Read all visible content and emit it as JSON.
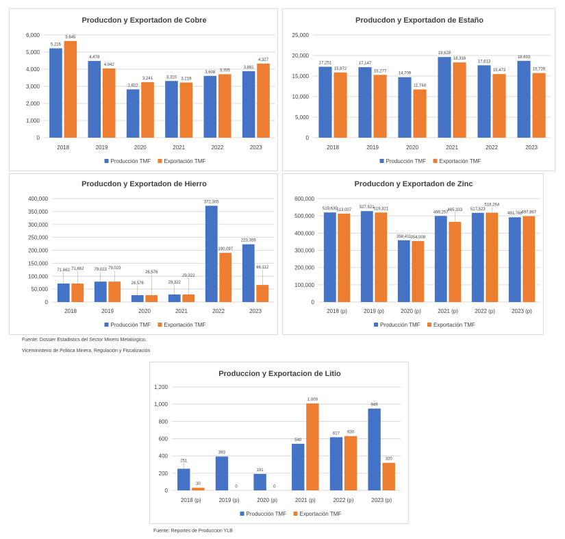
{
  "colors": {
    "production": "#4472C4",
    "export": "#ED7D31",
    "grid": "#d9d9d9",
    "leader": "#a6a6a6"
  },
  "charts": [
    {
      "chart_data": {
        "type": "bar",
        "title": "Producdon y Exportadon de Cobre",
        "categories": [
          "2018",
          "2019",
          "2020",
          "2021",
          "2022",
          "2023"
        ],
        "series": [
          {
            "name": "Producción TMF",
            "values": [
              5216,
              4478,
              2822,
              3310,
              3608,
              3881
            ],
            "labels": [
              "5,216",
              "4,478",
              "2,822",
              "3,310",
              "3,608",
              "3,881"
            ]
          },
          {
            "name": "Exportación TMF",
            "values": [
              5645,
              4042,
              3241,
              3219,
              3705,
              4327
            ],
            "labels": [
              "5,645",
              "4,042",
              "3,241",
              "3,219",
              "3,705",
              "4,327"
            ]
          }
        ],
        "ylim": [
          0,
          6000
        ],
        "yticks": [
          "0",
          "1,000",
          "2,000",
          "3,000",
          "4,000",
          "5,000",
          "6,000"
        ],
        "legend": "bottom",
        "grid": true
      }
    },
    {
      "chart_data": {
        "type": "bar",
        "title": "Producdon y Exportadon de Estaño",
        "categories": [
          "2018",
          "2019",
          "2020",
          "2021",
          "2022",
          "2023"
        ],
        "series": [
          {
            "name": "Producción TMF",
            "values": [
              17251,
              17147,
              14709,
              19628,
              17613,
              18693
            ],
            "labels": [
              "17,251",
              "17,147",
              "14,709",
              "19,628",
              "17,613",
              "18,693"
            ]
          },
          {
            "name": "Exportación TMF",
            "values": [
              15872,
              15277,
              11744,
              18316,
              15473,
              15726
            ],
            "labels": [
              "15,872",
              "15,277",
              "11,744",
              "18,316",
              "15,473",
              "15,726"
            ]
          }
        ],
        "ylim": [
          0,
          25000
        ],
        "yticks": [
          "0",
          "5,000",
          "10,000",
          "15,000",
          "20,000",
          "25,000"
        ],
        "legend": "bottom",
        "grid": true
      }
    },
    {
      "chart_data": {
        "type": "bar",
        "title": "Producdon y Exportadon de Hierro",
        "categories": [
          "2018",
          "2019",
          "2020",
          "2021",
          "2022",
          "2023"
        ],
        "series": [
          {
            "name": "Producción TMF",
            "values": [
              71662,
              79023,
              26576,
              29322,
              372305,
              223359
            ],
            "labels": [
              "71,662",
              "79,023",
              "26,576",
              "29,322",
              "372,305",
              "223,359"
            ]
          },
          {
            "name": "Exportación TMF",
            "values": [
              71662,
              79023,
              26576,
              29322,
              190097,
              66112
            ],
            "labels": [
              "71,662",
              "79,023",
              "26,576",
              "29,322",
              "190,097",
              "66,112"
            ]
          }
        ],
        "ylim": [
          0,
          400000
        ],
        "yticks": [
          "0",
          "50,000",
          "100,000",
          "150,000",
          "200,000",
          "250,000",
          "300,000",
          "350,000",
          "400,000"
        ],
        "legend": "bottom",
        "grid": true
      }
    },
    {
      "chart_data": {
        "type": "bar",
        "title": "Producdon y Exportadon de Zinc",
        "categories": [
          "2018 (p)",
          "2019 (p)",
          "2020 (p)",
          "2021 (p)",
          "2022 (p)",
          "2023 (p)"
        ],
        "series": [
          {
            "name": "Producción TMF",
            "values": [
              519630,
              527521,
              358411,
              499257,
              517523,
              491768
            ],
            "labels": [
              "519,630",
              "527,521",
              "358,411",
              "499,257",
              "517,523",
              "491,768"
            ]
          },
          {
            "name": "Exportación TMF",
            "values": [
              513007,
              519321,
              354008,
              465333,
              518264,
              497867
            ],
            "labels": [
              "513,007",
              "519,321",
              "354,008",
              "465,333",
              "518,264",
              "497,867"
            ]
          }
        ],
        "ylim": [
          0,
          600000
        ],
        "yticks": [
          "0",
          "100,000",
          "200,000",
          "300,000",
          "400,000",
          "500,000",
          "600,000"
        ],
        "legend": "bottom",
        "grid": true
      }
    },
    {
      "chart_data": {
        "type": "bar",
        "title": "Produccion y Exportacion de Litio",
        "categories": [
          "2018 (p)",
          "2019 (p)",
          "2020 (p)",
          "2021 (p)",
          "2022 (p)",
          "2023 (p)"
        ],
        "series": [
          {
            "name": "Producción TMF",
            "values": [
              251,
              393,
              191,
              540,
              617,
              949
            ],
            "labels": [
              "251",
              "393",
              "191",
              "540",
              "617",
              "949"
            ]
          },
          {
            "name": "Exportación TMF",
            "values": [
              30,
              0,
              0,
              1009,
              630,
              320
            ],
            "labels": [
              "30",
              "0",
              "0",
              "1,009",
              "630",
              "320"
            ]
          }
        ],
        "ylim": [
          0,
          1200
        ],
        "yticks": [
          "0",
          "200",
          "400",
          "600",
          "800",
          "1,000",
          "1,200"
        ],
        "legend": "bottom",
        "grid": true
      }
    }
  ],
  "sources": {
    "line1": "Fuente: Dossier Estadistics del Sector Minero Metalúrgico.",
    "line2": "Viceministerio de Politica Minera, Regulación y Fiscalización",
    "line3": "Fuente: Reportes de Produccion YLB"
  }
}
